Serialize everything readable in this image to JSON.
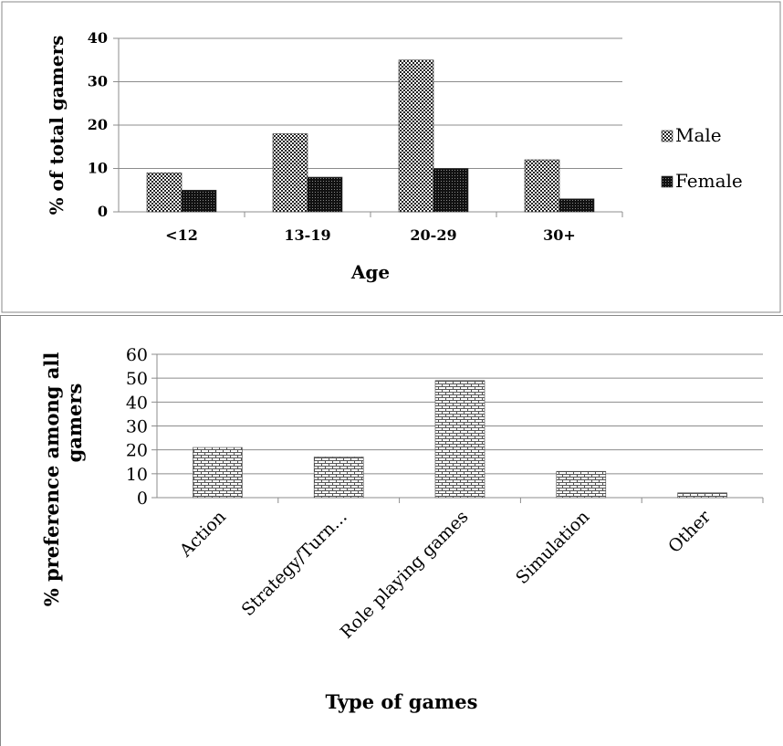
{
  "chart_data": [
    {
      "type": "bar",
      "title": "",
      "xlabel": "Age",
      "ylabel": "% of total gamers",
      "categories": [
        "<12",
        "13-19",
        "20-29",
        "30+"
      ],
      "series": [
        {
          "name": "Male",
          "values": [
            9,
            18,
            35,
            12
          ]
        },
        {
          "name": "Female",
          "values": [
            5,
            8,
            10,
            3
          ]
        }
      ],
      "ylim": [
        0,
        40
      ],
      "yticks": [
        "0",
        "10",
        "20",
        "30",
        "40"
      ],
      "grid": true,
      "legend": "right",
      "colors": {
        "Male": "#8a8a8a",
        "Female": "#1a1a1a"
      }
    },
    {
      "type": "bar",
      "title": "",
      "xlabel": "Type of games",
      "ylabel": "% preference among all gamers",
      "categories": [
        "Action",
        "Strategy/Turn...",
        "Role playing games",
        "Simulation",
        "Other"
      ],
      "series": [
        {
          "values": [
            21,
            17,
            49,
            11,
            2
          ]
        }
      ],
      "ylim": [
        0,
        60
      ],
      "yticks": [
        "0",
        "10",
        "20",
        "30",
        "40",
        "50",
        "60"
      ],
      "grid": true,
      "legend": "none",
      "colors": {
        "bar": "#b8b8b8"
      }
    }
  ]
}
